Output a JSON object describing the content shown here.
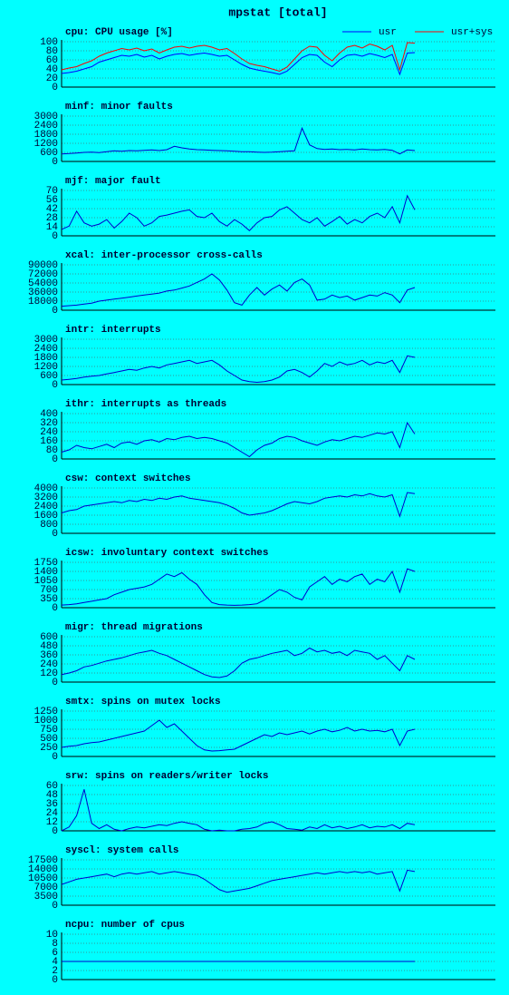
{
  "title": "mpstat [total]",
  "chart_data": [
    {
      "type": "line",
      "title": "cpu: CPU usage [%]",
      "ylim": [
        0,
        100
      ],
      "yticks": [
        0,
        20,
        40,
        60,
        80,
        100
      ],
      "grid": true,
      "legend": "top-right",
      "series": [
        {
          "name": "usr",
          "color": "#0000ff",
          "values": [
            30,
            32,
            35,
            40,
            45,
            55,
            60,
            65,
            70,
            68,
            72,
            66,
            70,
            62,
            68,
            72,
            74,
            70,
            73,
            75,
            72,
            68,
            70,
            60,
            50,
            42,
            38,
            35,
            32,
            28,
            35,
            50,
            65,
            72,
            70,
            55,
            45,
            60,
            70,
            72,
            68,
            74,
            70,
            65,
            72,
            28,
            75,
            76
          ]
        },
        {
          "name": "usr+sys",
          "color": "#ff0000",
          "values": [
            38,
            42,
            45,
            52,
            58,
            68,
            75,
            80,
            85,
            82,
            86,
            80,
            84,
            75,
            82,
            88,
            90,
            86,
            90,
            92,
            88,
            82,
            85,
            74,
            62,
            52,
            48,
            45,
            40,
            35,
            44,
            62,
            80,
            90,
            88,
            70,
            58,
            75,
            88,
            92,
            86,
            95,
            90,
            82,
            92,
            38,
            98,
            97
          ]
        }
      ]
    },
    {
      "type": "line",
      "title": "minf: minor faults",
      "ylim": [
        0,
        3000
      ],
      "yticks": [
        0,
        600,
        1200,
        1800,
        2400,
        3000
      ],
      "grid": true,
      "series": [
        {
          "color": "#0000cc",
          "values": [
            500,
            520,
            560,
            600,
            620,
            580,
            640,
            700,
            680,
            720,
            700,
            740,
            760,
            720,
            780,
            1000,
            900,
            820,
            780,
            760,
            740,
            720,
            700,
            680,
            650,
            640,
            620,
            600,
            620,
            650,
            680,
            700,
            2200,
            1100,
            850,
            800,
            820,
            780,
            800,
            760,
            820,
            780,
            760,
            800,
            740,
            500,
            760,
            720
          ]
        }
      ]
    },
    {
      "type": "line",
      "title": "mjf: major fault",
      "ylim": [
        0,
        70
      ],
      "yticks": [
        0,
        14,
        28,
        42,
        56,
        70
      ],
      "grid": true,
      "series": [
        {
          "color": "#0000cc",
          "values": [
            10,
            15,
            38,
            20,
            15,
            18,
            25,
            12,
            22,
            35,
            28,
            15,
            20,
            30,
            32,
            35,
            38,
            40,
            30,
            28,
            35,
            22,
            15,
            25,
            18,
            8,
            20,
            28,
            30,
            40,
            45,
            35,
            25,
            20,
            28,
            15,
            22,
            30,
            18,
            25,
            20,
            30,
            35,
            28,
            45,
            20,
            62,
            40
          ]
        }
      ]
    },
    {
      "type": "line",
      "title": "xcal: inter-processor cross-calls",
      "ylim": [
        0,
        90000
      ],
      "yticks": [
        0,
        18000,
        36000,
        54000,
        72000,
        90000
      ],
      "grid": true,
      "series": [
        {
          "color": "#0000cc",
          "values": [
            8000,
            9000,
            10000,
            12000,
            14000,
            18000,
            20000,
            22000,
            24000,
            26000,
            28000,
            30000,
            32000,
            34000,
            38000,
            40000,
            44000,
            48000,
            55000,
            62000,
            72000,
            60000,
            40000,
            15000,
            10000,
            30000,
            45000,
            30000,
            42000,
            50000,
            38000,
            55000,
            62000,
            50000,
            20000,
            22000,
            30000,
            25000,
            28000,
            20000,
            25000,
            30000,
            28000,
            35000,
            30000,
            15000,
            40000,
            45000
          ]
        }
      ]
    },
    {
      "type": "line",
      "title": "intr: interrupts",
      "ylim": [
        0,
        3000
      ],
      "yticks": [
        0,
        600,
        1200,
        1800,
        2400,
        3000
      ],
      "grid": true,
      "series": [
        {
          "color": "#0000cc",
          "values": [
            300,
            350,
            400,
            500,
            550,
            600,
            700,
            800,
            900,
            1000,
            950,
            1100,
            1200,
            1100,
            1300,
            1400,
            1500,
            1600,
            1400,
            1500,
            1600,
            1300,
            900,
            600,
            300,
            200,
            150,
            200,
            300,
            500,
            900,
            1000,
            800,
            500,
            900,
            1400,
            1200,
            1500,
            1300,
            1400,
            1600,
            1300,
            1500,
            1400,
            1600,
            800,
            1900,
            1800
          ]
        }
      ]
    },
    {
      "type": "line",
      "title": "ithr: interrupts as threads",
      "ylim": [
        0,
        400
      ],
      "yticks": [
        0,
        80,
        160,
        240,
        320,
        400
      ],
      "grid": true,
      "series": [
        {
          "color": "#0000cc",
          "values": [
            60,
            80,
            120,
            100,
            90,
            110,
            130,
            100,
            140,
            150,
            130,
            160,
            170,
            150,
            180,
            170,
            190,
            200,
            180,
            190,
            180,
            160,
            140,
            100,
            60,
            20,
            80,
            120,
            140,
            180,
            200,
            190,
            160,
            140,
            120,
            150,
            170,
            160,
            180,
            200,
            190,
            210,
            230,
            220,
            240,
            100,
            320,
            220
          ]
        }
      ]
    },
    {
      "type": "line",
      "title": "csw: context switches",
      "ylim": [
        0,
        4000
      ],
      "yticks": [
        0,
        800,
        1600,
        2400,
        3200,
        4000
      ],
      "grid": true,
      "series": [
        {
          "color": "#0000cc",
          "values": [
            1800,
            2000,
            2100,
            2400,
            2500,
            2600,
            2700,
            2800,
            2700,
            2900,
            2800,
            3000,
            2900,
            3100,
            3000,
            3200,
            3300,
            3100,
            3000,
            2900,
            2800,
            2700,
            2500,
            2200,
            1800,
            1600,
            1700,
            1800,
            2000,
            2300,
            2600,
            2800,
            2700,
            2600,
            2800,
            3100,
            3200,
            3300,
            3200,
            3400,
            3300,
            3500,
            3300,
            3200,
            3400,
            1500,
            3600,
            3500
          ]
        }
      ]
    },
    {
      "type": "line",
      "title": "icsw: involuntary context switches",
      "ylim": [
        0,
        1750
      ],
      "yticks": [
        0,
        350,
        700,
        1050,
        1400,
        1750
      ],
      "grid": true,
      "series": [
        {
          "color": "#0000cc",
          "values": [
            100,
            120,
            150,
            200,
            250,
            300,
            350,
            500,
            600,
            700,
            750,
            800,
            900,
            1100,
            1300,
            1200,
            1350,
            1100,
            900,
            500,
            200,
            120,
            100,
            90,
            100,
            120,
            150,
            300,
            500,
            700,
            600,
            400,
            300,
            800,
            1000,
            1200,
            900,
            1100,
            1000,
            1200,
            1300,
            900,
            1100,
            1000,
            1400,
            600,
            1500,
            1400
          ]
        }
      ]
    },
    {
      "type": "line",
      "title": "migr: thread migrations",
      "ylim": [
        0,
        600
      ],
      "yticks": [
        0,
        120,
        240,
        360,
        480,
        600
      ],
      "grid": true,
      "series": [
        {
          "color": "#0000cc",
          "values": [
            100,
            120,
            150,
            200,
            220,
            250,
            280,
            300,
            320,
            350,
            380,
            400,
            420,
            380,
            350,
            300,
            250,
            200,
            150,
            100,
            70,
            60,
            80,
            150,
            250,
            300,
            320,
            350,
            380,
            400,
            420,
            350,
            380,
            450,
            400,
            420,
            380,
            400,
            350,
            420,
            400,
            380,
            300,
            350,
            250,
            150,
            350,
            300
          ]
        }
      ]
    },
    {
      "type": "line",
      "title": "smtx: spins on mutex locks",
      "ylim": [
        0,
        1250
      ],
      "yticks": [
        0,
        250,
        500,
        750,
        1000,
        1250
      ],
      "grid": true,
      "series": [
        {
          "color": "#0000cc",
          "values": [
            250,
            280,
            300,
            350,
            380,
            400,
            450,
            500,
            550,
            600,
            650,
            700,
            850,
            1000,
            800,
            900,
            700,
            500,
            300,
            180,
            150,
            160,
            180,
            200,
            300,
            400,
            500,
            600,
            550,
            650,
            600,
            650,
            700,
            620,
            700,
            750,
            680,
            720,
            800,
            700,
            750,
            700,
            720,
            680,
            750,
            300,
            700,
            750
          ]
        }
      ]
    },
    {
      "type": "line",
      "title": "srw: spins on readers/writer locks",
      "ylim": [
        0,
        60
      ],
      "yticks": [
        0,
        12,
        24,
        36,
        48,
        60
      ],
      "grid": true,
      "series": [
        {
          "color": "#0000cc",
          "values": [
            0,
            5,
            20,
            55,
            10,
            3,
            8,
            2,
            0,
            3,
            5,
            4,
            6,
            8,
            7,
            10,
            12,
            10,
            8,
            2,
            0,
            1,
            0,
            0,
            2,
            3,
            5,
            10,
            12,
            8,
            3,
            2,
            1,
            5,
            3,
            8,
            4,
            6,
            3,
            5,
            8,
            4,
            6,
            5,
            8,
            3,
            10,
            8
          ]
        }
      ]
    },
    {
      "type": "line",
      "title": "syscl: system calls",
      "ylim": [
        0,
        17500
      ],
      "yticks": [
        0,
        3500,
        7000,
        10500,
        14000,
        17500
      ],
      "grid": true,
      "series": [
        {
          "color": "#0000cc",
          "values": [
            8000,
            9000,
            10000,
            10500,
            11000,
            11500,
            12000,
            11000,
            12000,
            12500,
            12000,
            12500,
            13000,
            12000,
            12500,
            13000,
            12500,
            12000,
            11500,
            10000,
            8000,
            6000,
            5000,
            5500,
            6000,
            6500,
            7500,
            8500,
            9500,
            10000,
            10500,
            11000,
            11500,
            12000,
            12500,
            12000,
            12500,
            13000,
            12500,
            13000,
            12500,
            13000,
            12000,
            12500,
            13000,
            5500,
            13500,
            13000
          ]
        }
      ]
    },
    {
      "type": "line",
      "title": "ncpu: number of cpus",
      "ylim": [
        0,
        10
      ],
      "yticks": [
        0,
        2,
        4,
        6,
        8,
        10
      ],
      "grid": true,
      "series": [
        {
          "color": "#0000cc",
          "values": [
            4,
            4,
            4,
            4,
            4,
            4,
            4,
            4,
            4,
            4,
            4,
            4,
            4,
            4,
            4,
            4,
            4,
            4,
            4,
            4,
            4,
            4,
            4,
            4,
            4,
            4,
            4,
            4,
            4,
            4,
            4,
            4,
            4,
            4,
            4,
            4,
            4,
            4,
            4,
            4,
            4,
            4,
            4,
            4,
            4,
            4,
            4,
            4
          ]
        }
      ]
    }
  ]
}
